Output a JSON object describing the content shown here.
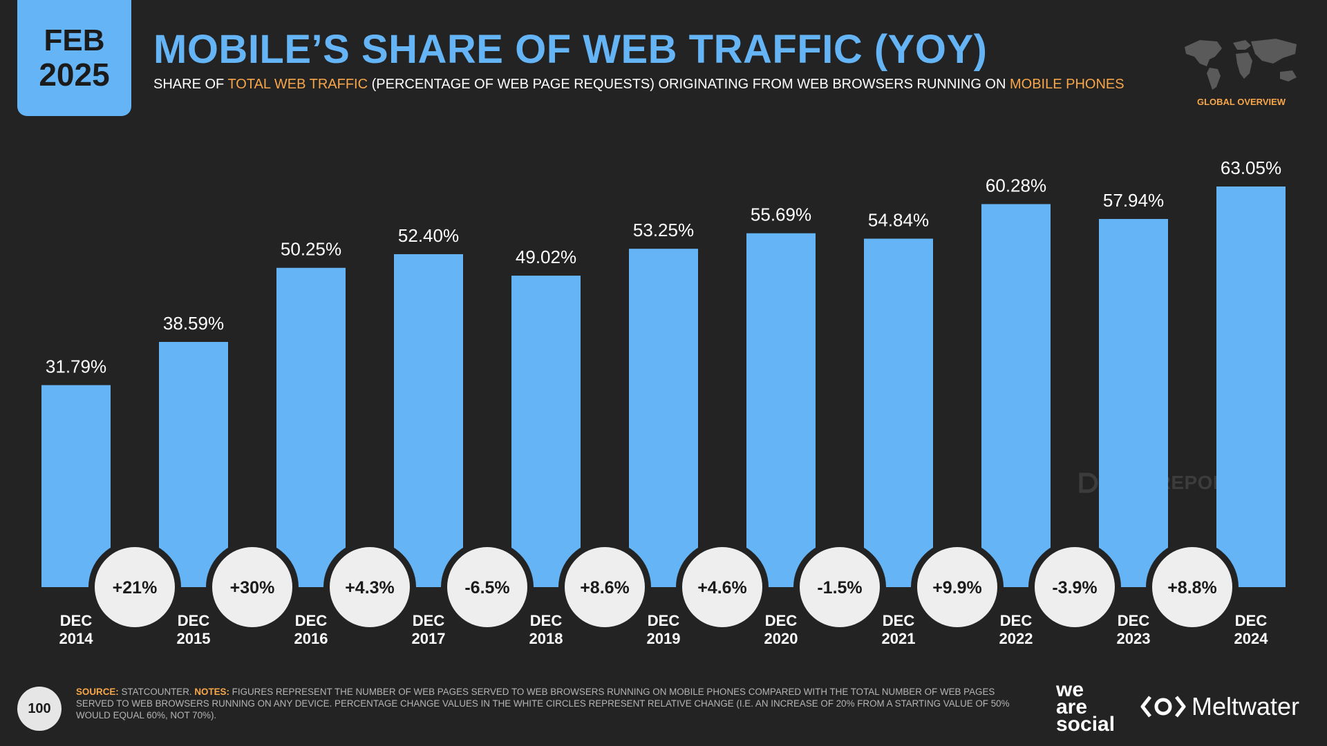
{
  "badge": {
    "month": "FEB",
    "year": "2025"
  },
  "header": {
    "title": "MOBILE’S SHARE OF WEB TRAFFIC (YOY)",
    "subtitle_parts": [
      "SHARE OF ",
      "TOTAL WEB TRAFFIC",
      " (PERCENTAGE OF WEB PAGE REQUESTS) ORIGINATING FROM WEB BROWSERS RUNNING ON ",
      "MOBILE PHONES"
    ]
  },
  "region_label": "GLOBAL OVERVIEW",
  "watermark": "DATAREPORTAL",
  "colors": {
    "bar": "#65b5f6",
    "accent": "#f7a64a",
    "background": "#232323",
    "circle": "#eeeeee"
  },
  "chart_data": {
    "type": "bar",
    "categories": [
      [
        "DEC",
        "2014"
      ],
      [
        "DEC",
        "2015"
      ],
      [
        "DEC",
        "2016"
      ],
      [
        "DEC",
        "2017"
      ],
      [
        "DEC",
        "2018"
      ],
      [
        "DEC",
        "2019"
      ],
      [
        "DEC",
        "2020"
      ],
      [
        "DEC",
        "2021"
      ],
      [
        "DEC",
        "2022"
      ],
      [
        "DEC",
        "2023"
      ],
      [
        "DEC",
        "2024"
      ]
    ],
    "values": [
      31.79,
      38.59,
      50.25,
      52.4,
      49.02,
      53.25,
      55.69,
      54.84,
      60.28,
      57.94,
      63.05
    ],
    "value_labels": [
      "31.79%",
      "38.59%",
      "50.25%",
      "52.40%",
      "49.02%",
      "53.25%",
      "55.69%",
      "54.84%",
      "60.28%",
      "57.94%",
      "63.05%"
    ],
    "yoy_change": [
      "+21%",
      "+30%",
      "+4.3%",
      "-6.5%",
      "+8.6%",
      "+4.6%",
      "-1.5%",
      "+9.9%",
      "-3.9%",
      "+8.8%"
    ],
    "ylim": [
      0,
      63.05
    ]
  },
  "footer": {
    "page_number": "100",
    "source_key": "SOURCE:",
    "source_text": " STATCOUNTER. ",
    "notes_key": "NOTES:",
    "notes_text": " FIGURES REPRESENT THE NUMBER OF WEB PAGES SERVED TO WEB BROWSERS RUNNING ON MOBILE PHONES COMPARED WITH THE TOTAL NUMBER OF WEB PAGES SERVED TO WEB BROWSERS RUNNING ON ANY DEVICE. PERCENTAGE CHANGE VALUES IN THE WHITE CIRCLES REPRESENT RELATIVE CHANGE (I.E. AN INCREASE OF 20% FROM A STARTING VALUE OF 50% WOULD EQUAL 60%, NOT 70%).",
    "logo1_lines": [
      "we",
      "are",
      "social"
    ],
    "logo2": "Meltwater"
  }
}
